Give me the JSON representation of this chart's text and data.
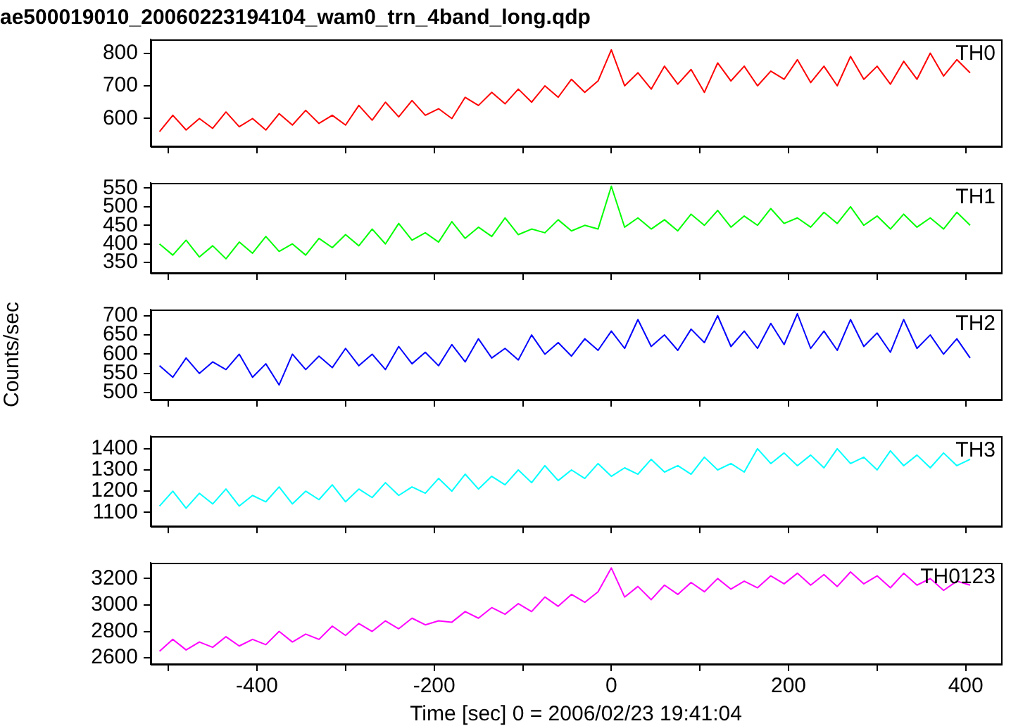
{
  "chart_data": [
    {
      "type": "line",
      "title": "ae500019010_20060223194104_wam0_trn_4band_long.qdp",
      "x": [
        -510,
        -495,
        -480,
        -465,
        -450,
        -435,
        -420,
        -405,
        -390,
        -375,
        -360,
        -345,
        -330,
        -315,
        -300,
        -285,
        -270,
        -255,
        -240,
        -225,
        -210,
        -195,
        -180,
        -165,
        -150,
        -135,
        -120,
        -105,
        -90,
        -75,
        -60,
        -45,
        -30,
        -15,
        0,
        15,
        30,
        45,
        60,
        75,
        90,
        105,
        120,
        135,
        150,
        165,
        180,
        195,
        210,
        225,
        240,
        255,
        270,
        285,
        300,
        315,
        330,
        345,
        360,
        375,
        390,
        405
      ],
      "series": [
        {
          "name": "TH0",
          "color": "#ff0000",
          "values": [
            560,
            610,
            565,
            600,
            570,
            620,
            575,
            600,
            565,
            615,
            580,
            625,
            585,
            610,
            580,
            640,
            595,
            650,
            605,
            655,
            610,
            630,
            600,
            665,
            640,
            680,
            645,
            690,
            650,
            700,
            665,
            720,
            680,
            715,
            810,
            700,
            740,
            690,
            760,
            705,
            750,
            680,
            770,
            715,
            760,
            700,
            745,
            720,
            780,
            710,
            760,
            700,
            790,
            720,
            760,
            705,
            775,
            720,
            800,
            730,
            780,
            740
          ]
        }
      ],
      "xlim": [
        -520,
        440
      ],
      "xticks": [
        {
          "value": -500,
          "label": null
        },
        -400,
        {
          "value": -300,
          "label": null
        },
        -200,
        {
          "value": -100,
          "label": null
        },
        0,
        {
          "value": 100,
          "label": null
        },
        200,
        {
          "value": 300,
          "label": null
        },
        400
      ],
      "ylim": [
        515,
        842
      ],
      "yticks": [
        600,
        700,
        800
      ],
      "tick_labels": "y",
      "grid": false,
      "legend": false,
      "marker": "none",
      "line_style": "solid"
    },
    {
      "type": "line",
      "x": [
        -510,
        -495,
        -480,
        -465,
        -450,
        -435,
        -420,
        -405,
        -390,
        -375,
        -360,
        -345,
        -330,
        -315,
        -300,
        -285,
        -270,
        -255,
        -240,
        -225,
        -210,
        -195,
        -180,
        -165,
        -150,
        -135,
        -120,
        -105,
        -90,
        -75,
        -60,
        -45,
        -30,
        -15,
        0,
        15,
        30,
        45,
        60,
        75,
        90,
        105,
        120,
        135,
        150,
        165,
        180,
        195,
        210,
        225,
        240,
        255,
        270,
        285,
        300,
        315,
        330,
        345,
        360,
        375,
        390,
        405
      ],
      "series": [
        {
          "name": "TH1",
          "color": "#00ff00",
          "values": [
            400,
            370,
            410,
            365,
            395,
            360,
            405,
            375,
            420,
            380,
            400,
            370,
            415,
            390,
            425,
            395,
            440,
            400,
            455,
            410,
            430,
            405,
            460,
            415,
            445,
            420,
            470,
            425,
            440,
            430,
            465,
            435,
            450,
            440,
            555,
            445,
            470,
            440,
            465,
            435,
            480,
            450,
            490,
            445,
            475,
            450,
            495,
            455,
            470,
            445,
            485,
            455,
            500,
            450,
            475,
            440,
            480,
            445,
            470,
            440,
            485,
            450
          ]
        }
      ],
      "xlim": [
        -520,
        440
      ],
      "xticks": [
        {
          "value": -500,
          "label": null
        },
        -400,
        {
          "value": -300,
          "label": null
        },
        -200,
        {
          "value": -100,
          "label": null
        },
        0,
        {
          "value": 100,
          "label": null
        },
        200,
        {
          "value": 300,
          "label": null
        },
        400
      ],
      "ylim": [
        322,
        564
      ],
      "yticks": [
        350,
        400,
        450,
        500,
        550
      ],
      "tick_labels": "y",
      "grid": false,
      "legend": false,
      "marker": "none",
      "line_style": "solid"
    },
    {
      "type": "line",
      "ylabel": "Counts/sec",
      "x": [
        -510,
        -495,
        -480,
        -465,
        -450,
        -435,
        -420,
        -405,
        -390,
        -375,
        -360,
        -345,
        -330,
        -315,
        -300,
        -285,
        -270,
        -255,
        -240,
        -225,
        -210,
        -195,
        -180,
        -165,
        -150,
        -135,
        -120,
        -105,
        -90,
        -75,
        -60,
        -45,
        -30,
        -15,
        0,
        15,
        30,
        45,
        60,
        75,
        90,
        105,
        120,
        135,
        150,
        165,
        180,
        195,
        210,
        225,
        240,
        255,
        270,
        285,
        300,
        315,
        330,
        345,
        360,
        375,
        390,
        405
      ],
      "series": [
        {
          "name": "TH2",
          "color": "#0000ff",
          "values": [
            570,
            540,
            590,
            550,
            580,
            560,
            600,
            540,
            575,
            520,
            600,
            560,
            595,
            565,
            615,
            570,
            600,
            560,
            620,
            575,
            605,
            570,
            625,
            580,
            640,
            590,
            615,
            585,
            650,
            600,
            630,
            595,
            640,
            610,
            660,
            615,
            690,
            620,
            650,
            610,
            665,
            630,
            700,
            620,
            660,
            615,
            680,
            625,
            705,
            615,
            660,
            610,
            690,
            620,
            655,
            605,
            690,
            615,
            650,
            600,
            640,
            590
          ]
        }
      ],
      "xlim": [
        -520,
        440
      ],
      "xticks": [
        {
          "value": -500,
          "label": null
        },
        -400,
        {
          "value": -300,
          "label": null
        },
        -200,
        {
          "value": -100,
          "label": null
        },
        0,
        {
          "value": 100,
          "label": null
        },
        200,
        {
          "value": 300,
          "label": null
        },
        400
      ],
      "ylim": [
        482,
        716
      ],
      "yticks": [
        500,
        550,
        600,
        650,
        700
      ],
      "tick_labels": "y",
      "grid": false,
      "legend": false,
      "marker": "none",
      "line_style": "solid"
    },
    {
      "type": "line",
      "x": [
        -510,
        -495,
        -480,
        -465,
        -450,
        -435,
        -420,
        -405,
        -390,
        -375,
        -360,
        -345,
        -330,
        -315,
        -300,
        -285,
        -270,
        -255,
        -240,
        -225,
        -210,
        -195,
        -180,
        -165,
        -150,
        -135,
        -120,
        -105,
        -90,
        -75,
        -60,
        -45,
        -30,
        -15,
        0,
        15,
        30,
        45,
        60,
        75,
        90,
        105,
        120,
        135,
        150,
        165,
        180,
        195,
        210,
        225,
        240,
        255,
        270,
        285,
        300,
        315,
        330,
        345,
        360,
        375,
        390,
        405
      ],
      "series": [
        {
          "name": "TH3",
          "color": "#00ffff",
          "values": [
            1130,
            1200,
            1120,
            1190,
            1140,
            1210,
            1130,
            1180,
            1150,
            1220,
            1140,
            1200,
            1160,
            1230,
            1150,
            1210,
            1170,
            1240,
            1180,
            1220,
            1190,
            1260,
            1200,
            1280,
            1210,
            1270,
            1230,
            1300,
            1240,
            1320,
            1250,
            1300,
            1260,
            1330,
            1270,
            1310,
            1280,
            1350,
            1290,
            1320,
            1280,
            1360,
            1300,
            1330,
            1290,
            1400,
            1330,
            1380,
            1320,
            1370,
            1310,
            1400,
            1330,
            1360,
            1300,
            1390,
            1320,
            1370,
            1310,
            1380,
            1320,
            1350
          ]
        }
      ],
      "xlim": [
        -520,
        440
      ],
      "xticks": [
        {
          "value": -500,
          "label": null
        },
        -400,
        {
          "value": -300,
          "label": null
        },
        -200,
        {
          "value": -100,
          "label": null
        },
        0,
        {
          "value": 100,
          "label": null
        },
        200,
        {
          "value": 300,
          "label": null
        },
        400
      ],
      "ylim": [
        1035,
        1459
      ],
      "yticks": [
        1100,
        1200,
        1300,
        1400
      ],
      "tick_labels": "y",
      "grid": false,
      "legend": false,
      "marker": "none",
      "line_style": "solid"
    },
    {
      "type": "line",
      "xlabel": "Time [sec] 0 = 2006/02/23 19:41:04",
      "x": [
        -510,
        -495,
        -480,
        -465,
        -450,
        -435,
        -420,
        -405,
        -390,
        -375,
        -360,
        -345,
        -330,
        -315,
        -300,
        -285,
        -270,
        -255,
        -240,
        -225,
        -210,
        -195,
        -180,
        -165,
        -150,
        -135,
        -120,
        -105,
        -90,
        -75,
        -60,
        -45,
        -30,
        -15,
        0,
        15,
        30,
        45,
        60,
        75,
        90,
        105,
        120,
        135,
        150,
        165,
        180,
        195,
        210,
        225,
        240,
        255,
        270,
        285,
        300,
        315,
        330,
        345,
        360,
        375,
        390,
        405
      ],
      "series": [
        {
          "name": "TH0123",
          "color": "#ff00ff",
          "values": [
            2650,
            2740,
            2660,
            2720,
            2680,
            2760,
            2690,
            2740,
            2700,
            2800,
            2720,
            2780,
            2740,
            2840,
            2770,
            2860,
            2800,
            2880,
            2820,
            2900,
            2850,
            2880,
            2870,
            2950,
            2900,
            2980,
            2930,
            3010,
            2950,
            3060,
            2990,
            3080,
            3020,
            3100,
            3280,
            3060,
            3140,
            3040,
            3150,
            3080,
            3170,
            3100,
            3200,
            3120,
            3180,
            3130,
            3220,
            3160,
            3240,
            3150,
            3230,
            3140,
            3250,
            3160,
            3220,
            3130,
            3240,
            3150,
            3200,
            3110,
            3180,
            3150
          ]
        }
      ],
      "xlim": [
        -520,
        440
      ],
      "xticks": [
        {
          "value": -500,
          "label": null
        },
        -400,
        {
          "value": -300,
          "label": null
        },
        -200,
        {
          "value": -100,
          "label": null
        },
        0,
        {
          "value": 100,
          "label": null
        },
        200,
        {
          "value": 300,
          "label": null
        },
        400
      ],
      "ylim": [
        2553,
        3319
      ],
      "yticks": [
        2600,
        2800,
        3000,
        3200
      ],
      "grid": false,
      "legend": false,
      "marker": "none",
      "line_style": "solid"
    }
  ]
}
